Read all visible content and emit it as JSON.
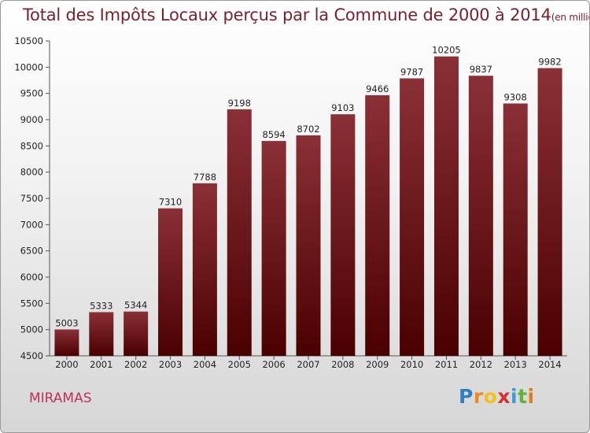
{
  "title": "Total des Impôts Locaux perçus par la Commune de 2000 à 2014",
  "title_unit": "(en milliers d'€)",
  "commune": "MIRAMAS",
  "logo": {
    "text": "Proxiti",
    "letters": [
      {
        "ch": "P",
        "color": "#2e7fc1"
      },
      {
        "ch": "r",
        "color": "#f08a1e"
      },
      {
        "ch": "o",
        "color": "#f3c21a"
      },
      {
        "ch": "x",
        "color": "#d6302f"
      },
      {
        "ch": "i",
        "color": "#3a9bd6"
      },
      {
        "ch": "t",
        "color": "#62b236"
      },
      {
        "ch": "i",
        "color": "#e07a1a"
      }
    ]
  },
  "colors": {
    "bar_top": "#8a3037",
    "bar_bottom": "#4a0000",
    "title": "#7a1f2c",
    "commune": "#c0305a"
  },
  "chart_data": {
    "type": "bar",
    "title": "Total des Impôts Locaux perçus par la Commune de 2000 à 2014",
    "categories": [
      "2000",
      "2001",
      "2002",
      "2003",
      "2004",
      "2005",
      "2006",
      "2007",
      "2008",
      "2009",
      "2010",
      "2011",
      "2012",
      "2013",
      "2014"
    ],
    "values": [
      5003,
      5333,
      5344,
      7310,
      7788,
      9198,
      8594,
      8702,
      9103,
      9466,
      9787,
      10205,
      9837,
      9308,
      9982
    ],
    "ylim": [
      4500,
      10500
    ],
    "yticks": [
      4500,
      5000,
      5500,
      6000,
      6500,
      7000,
      7500,
      8000,
      8500,
      9000,
      9500,
      10000,
      10500
    ],
    "grid": false,
    "data_labels": true
  }
}
